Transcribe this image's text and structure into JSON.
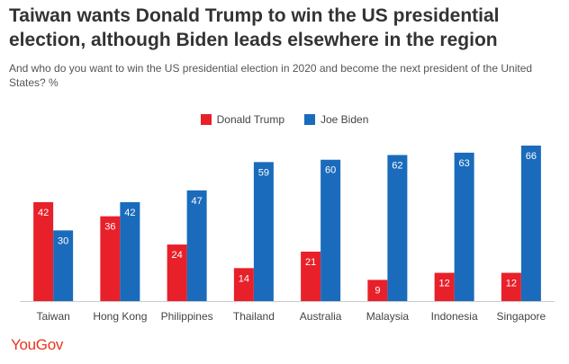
{
  "title": "Taiwan wants Donald Trump to win the US presidential election, although Biden leads elsewhere in the region",
  "subtitle": "And who do you want to win the US presidential election in 2020 and become the next president of the United States? %",
  "brand": "YouGov",
  "colors": {
    "trump": "#e8202a",
    "biden": "#1a6bbb",
    "axis": "#cccccc",
    "tick_text": "#444444",
    "label_inside": "#ffffff",
    "label_outside": "#666666"
  },
  "chart_data": {
    "type": "bar",
    "categories": [
      "Taiwan",
      "Hong Kong",
      "Philippines",
      "Thailand",
      "Australia",
      "Malaysia",
      "Indonesia",
      "Singapore"
    ],
    "series": [
      {
        "name": "Donald Trump",
        "values": [
          42,
          36,
          24,
          14,
          21,
          9,
          12,
          12
        ]
      },
      {
        "name": "Joe Biden",
        "values": [
          30,
          42,
          47,
          59,
          60,
          62,
          63,
          66
        ]
      }
    ],
    "ylim": [
      0,
      66
    ],
    "grid": false,
    "legend_position": "top-center"
  }
}
